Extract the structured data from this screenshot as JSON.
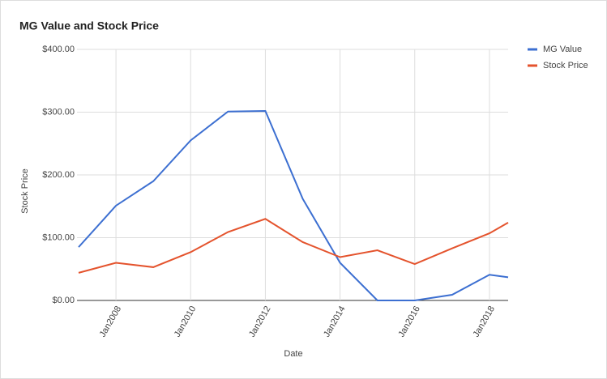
{
  "chart_data": {
    "type": "line",
    "title": "MG Value and Stock Price",
    "x_label": "Date",
    "y_label": "Stock Price",
    "x": [
      "2007-01",
      "2008-01",
      "2009-01",
      "2010-01",
      "2011-01",
      "2012-01",
      "2013-01",
      "2014-01",
      "2015-01",
      "2016-01",
      "2017-01",
      "2018-01",
      "2018-07"
    ],
    "series": [
      {
        "name": "MG Value",
        "color": "#3c6fd1",
        "values": [
          85,
          151,
          190,
          255,
          301,
          302,
          162,
          60,
          0,
          0,
          9,
          41,
          37
        ]
      },
      {
        "name": "Stock Price",
        "color": "#e4532d",
        "values": [
          44,
          60,
          53,
          77,
          109,
          130,
          93,
          69,
          80,
          58,
          83,
          107,
          124
        ]
      }
    ],
    "xlim": [
      "2007-01",
      "2018-07"
    ],
    "xticks": [
      {
        "value": "2008-01",
        "label": "Jan2008"
      },
      {
        "value": "2010-01",
        "label": "Jan2010"
      },
      {
        "value": "2012-01",
        "label": "Jan2012"
      },
      {
        "value": "2014-01",
        "label": "Jan2014"
      },
      {
        "value": "2016-01",
        "label": "Jan2016"
      },
      {
        "value": "2018-01",
        "label": "Jan2018"
      }
    ],
    "ylim": [
      0,
      400
    ],
    "yticks": [
      {
        "value": 0,
        "label": "$0.00"
      },
      {
        "value": 100,
        "label": "$100.00"
      },
      {
        "value": 200,
        "label": "$200.00"
      },
      {
        "value": 300,
        "label": "$300.00"
      },
      {
        "value": 400,
        "label": "$400.00"
      }
    ],
    "grid": true,
    "legend": "right"
  }
}
